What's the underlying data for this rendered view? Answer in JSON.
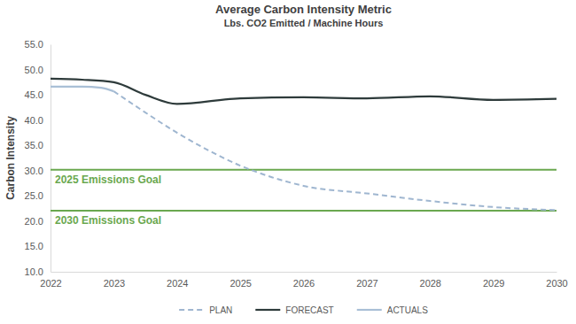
{
  "chart_data": {
    "type": "line",
    "title": "Average Carbon Intensity Metric",
    "subtitle": "Lbs. CO2 Emitted / Machine Hours",
    "y_label": "Carbon Intensity",
    "xlim": [
      2022,
      2030
    ],
    "xticks": [
      2022,
      2023,
      2024,
      2025,
      2026,
      2027,
      2028,
      2029,
      2030
    ],
    "ylim": [
      10,
      55
    ],
    "yticks": [
      {
        "value": 10,
        "label": "10.0"
      },
      {
        "value": 15,
        "label": "15.0"
      },
      {
        "value": 20,
        "label": "20.0"
      },
      {
        "value": 25,
        "label": "25.0"
      },
      {
        "value": 30,
        "label": "30.0"
      },
      {
        "value": 35,
        "label": "35.0"
      },
      {
        "value": 40,
        "label": "40.0"
      },
      {
        "value": 45,
        "label": "45.0"
      },
      {
        "value": 50,
        "label": "50.0"
      },
      {
        "value": 55,
        "label": "55.0"
      }
    ],
    "grid": false,
    "legend": "bottom",
    "series": [
      {
        "name": "PLAN",
        "color": "#9fb6d0",
        "line_style": "dashed",
        "x": [
          2023,
          2023.5,
          2024,
          2024.5,
          2025,
          2025.5,
          2026,
          2027,
          2028,
          2029,
          2030
        ],
        "values": [
          45.7,
          41.5,
          37.5,
          34.0,
          31.0,
          28.7,
          27.0,
          25.5,
          24.0,
          22.8,
          22.2
        ]
      },
      {
        "name": "FORECAST",
        "color": "#2e3b3b",
        "line_style": "solid",
        "x": [
          2022,
          2022.5,
          2023,
          2023.5,
          2024,
          2025,
          2026,
          2027,
          2028,
          2029,
          2030
        ],
        "values": [
          48.2,
          48.0,
          47.5,
          45.0,
          43.2,
          44.3,
          44.5,
          44.3,
          44.7,
          44.0,
          44.2
        ]
      },
      {
        "name": "ACTUALS",
        "color": "#a9bfd6",
        "line_style": "solid",
        "x": [
          2022,
          2022.5,
          2022.8,
          2023
        ],
        "values": [
          46.6,
          46.6,
          46.4,
          45.7
        ]
      }
    ],
    "annotations": [
      {
        "y": 30.2,
        "text": "2025 Emissions Goal",
        "color": "#6aa84f"
      },
      {
        "y": 22.1,
        "text": "2030 Emissions Goal",
        "color": "#6aa84f"
      }
    ]
  }
}
